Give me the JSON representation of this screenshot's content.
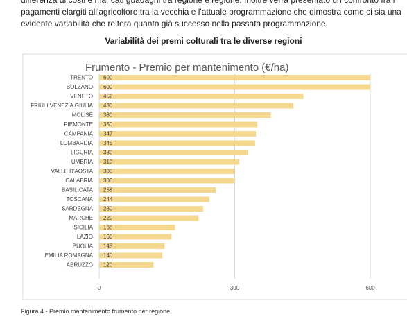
{
  "document": {
    "paragraph": [
      "differenza di costi e mancati guadagni tra regione e regione. Inoltre verrà presentato un confronto fra i",
      "pagamenti elargiti all'agricoltore tra la vecchia e l'attuale programmazione che dimostra come ci sia una",
      "evidente variabilità che reitera quanto già successo nella passata programmazione."
    ],
    "heading": "Variabilità dei premi colturali tra le diverse regioni",
    "caption": "Figura 4 - Premio mantenimento frumento per regione"
  },
  "chart_data": {
    "type": "hbar",
    "title": "Frumento - Premio per mantenimento (€/ha)",
    "categories": [
      "TRENTO",
      "BOLZANO",
      "VENETO",
      "FRIULI VENEZIA GIULIA",
      "MOLISE",
      "PIEMONTE",
      "CAMPANIA",
      "LOMBARDIA",
      "LIGURIA",
      "UMBRIA",
      "VALLE D'AOSTA",
      "CALABRIA",
      "BASILICATA",
      "TOSCANA",
      "SARDEGNA",
      "MARCHE",
      "SICILIA",
      "LAZIO",
      "PUGLIA",
      "EMILIA ROMAGNA",
      "ABRUZZO"
    ],
    "values": [
      600,
      600,
      452,
      430,
      380,
      350,
      347,
      345,
      330,
      310,
      300,
      300,
      258,
      244,
      230,
      220,
      168,
      160,
      145,
      140,
      120
    ],
    "color": "#f5d88f",
    "xlim": [
      0,
      600
    ],
    "xticks": [
      0,
      300,
      600
    ],
    "grid": true
  }
}
